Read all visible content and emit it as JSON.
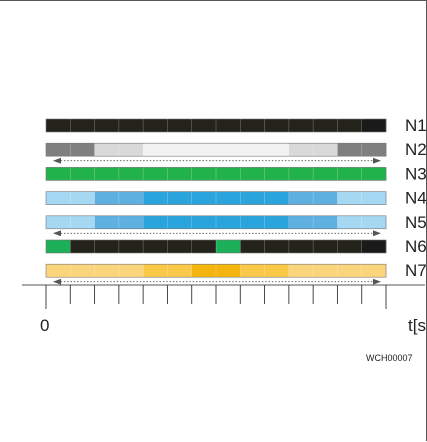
{
  "diagram": {
    "ticks": 14,
    "rows": [
      {
        "label": "N1",
        "segments": [
          "#23231c",
          "#23231c",
          "#23231c",
          "#23231c",
          "#23231c",
          "#23231c",
          "#23231c",
          "#23231c",
          "#23231c",
          "#23231c",
          "#23231c",
          "#23231c",
          "#23231c",
          "#1a1a1a"
        ],
        "arrow": false
      },
      {
        "label": "N2",
        "segments": [
          "#7f7f7f",
          "#7f7f7f",
          "#d9d9d9",
          "#d9d9d9",
          "#f2f2f2",
          "#f2f2f2",
          "#f2f2f2",
          "#f2f2f2",
          "#f2f2f2",
          "#f2f2f2",
          "#d9d9d9",
          "#d9d9d9",
          "#7f7f7f",
          "#7f7f7f"
        ],
        "arrow": true
      },
      {
        "label": "N3",
        "segments": [
          "#22b24c",
          "#22b24c",
          "#22b24c",
          "#22b24c",
          "#22b24c",
          "#22b24c",
          "#22b24c",
          "#22b24c",
          "#22b24c",
          "#22b24c",
          "#22b24c",
          "#22b24c",
          "#22b24c",
          "#22b24c"
        ],
        "arrow": false
      },
      {
        "label": "N4",
        "segments": [
          "#a5d8f2",
          "#a5d8f2",
          "#5eb0e0",
          "#5eb0e0",
          "#29a4dc",
          "#29a4dc",
          "#29a4dc",
          "#29a4dc",
          "#29a4dc",
          "#29a4dc",
          "#5eb0e0",
          "#5eb0e0",
          "#a5d8f2",
          "#a5d8f2"
        ],
        "arrow": false
      },
      {
        "label": "N5",
        "segments": [
          "#a5d8f2",
          "#a5d8f2",
          "#5eb0e0",
          "#5eb0e0",
          "#29a4dc",
          "#29a4dc",
          "#29a4dc",
          "#29a4dc",
          "#29a4dc",
          "#29a4dc",
          "#5eb0e0",
          "#5eb0e0",
          "#a5d8f2",
          "#a5d8f2"
        ],
        "arrow": true
      },
      {
        "label": "N6",
        "segments": [
          "#1cb058",
          "#23231c",
          "#23231c",
          "#23231c",
          "#23231c",
          "#23231c",
          "#23231c",
          "#1cb058",
          "#23231c",
          "#23231c",
          "#23231c",
          "#23231c",
          "#23231c",
          "#1a1a1a"
        ],
        "arrow": false
      },
      {
        "label": "N7",
        "segments": [
          "#fbd57c",
          "#fbd57c",
          "#fbd57c",
          "#fbd57c",
          "#f9c947",
          "#f9c947",
          "#f5b50f",
          "#f5b50f",
          "#f9c947",
          "#f9c947",
          "#fbd57c",
          "#fbd57c",
          "#fbd57c",
          "#fbd57c"
        ],
        "arrow": true
      }
    ],
    "axis": {
      "start_label": "0",
      "end_label": "t[s"
    },
    "reference": "WCH00007"
  }
}
